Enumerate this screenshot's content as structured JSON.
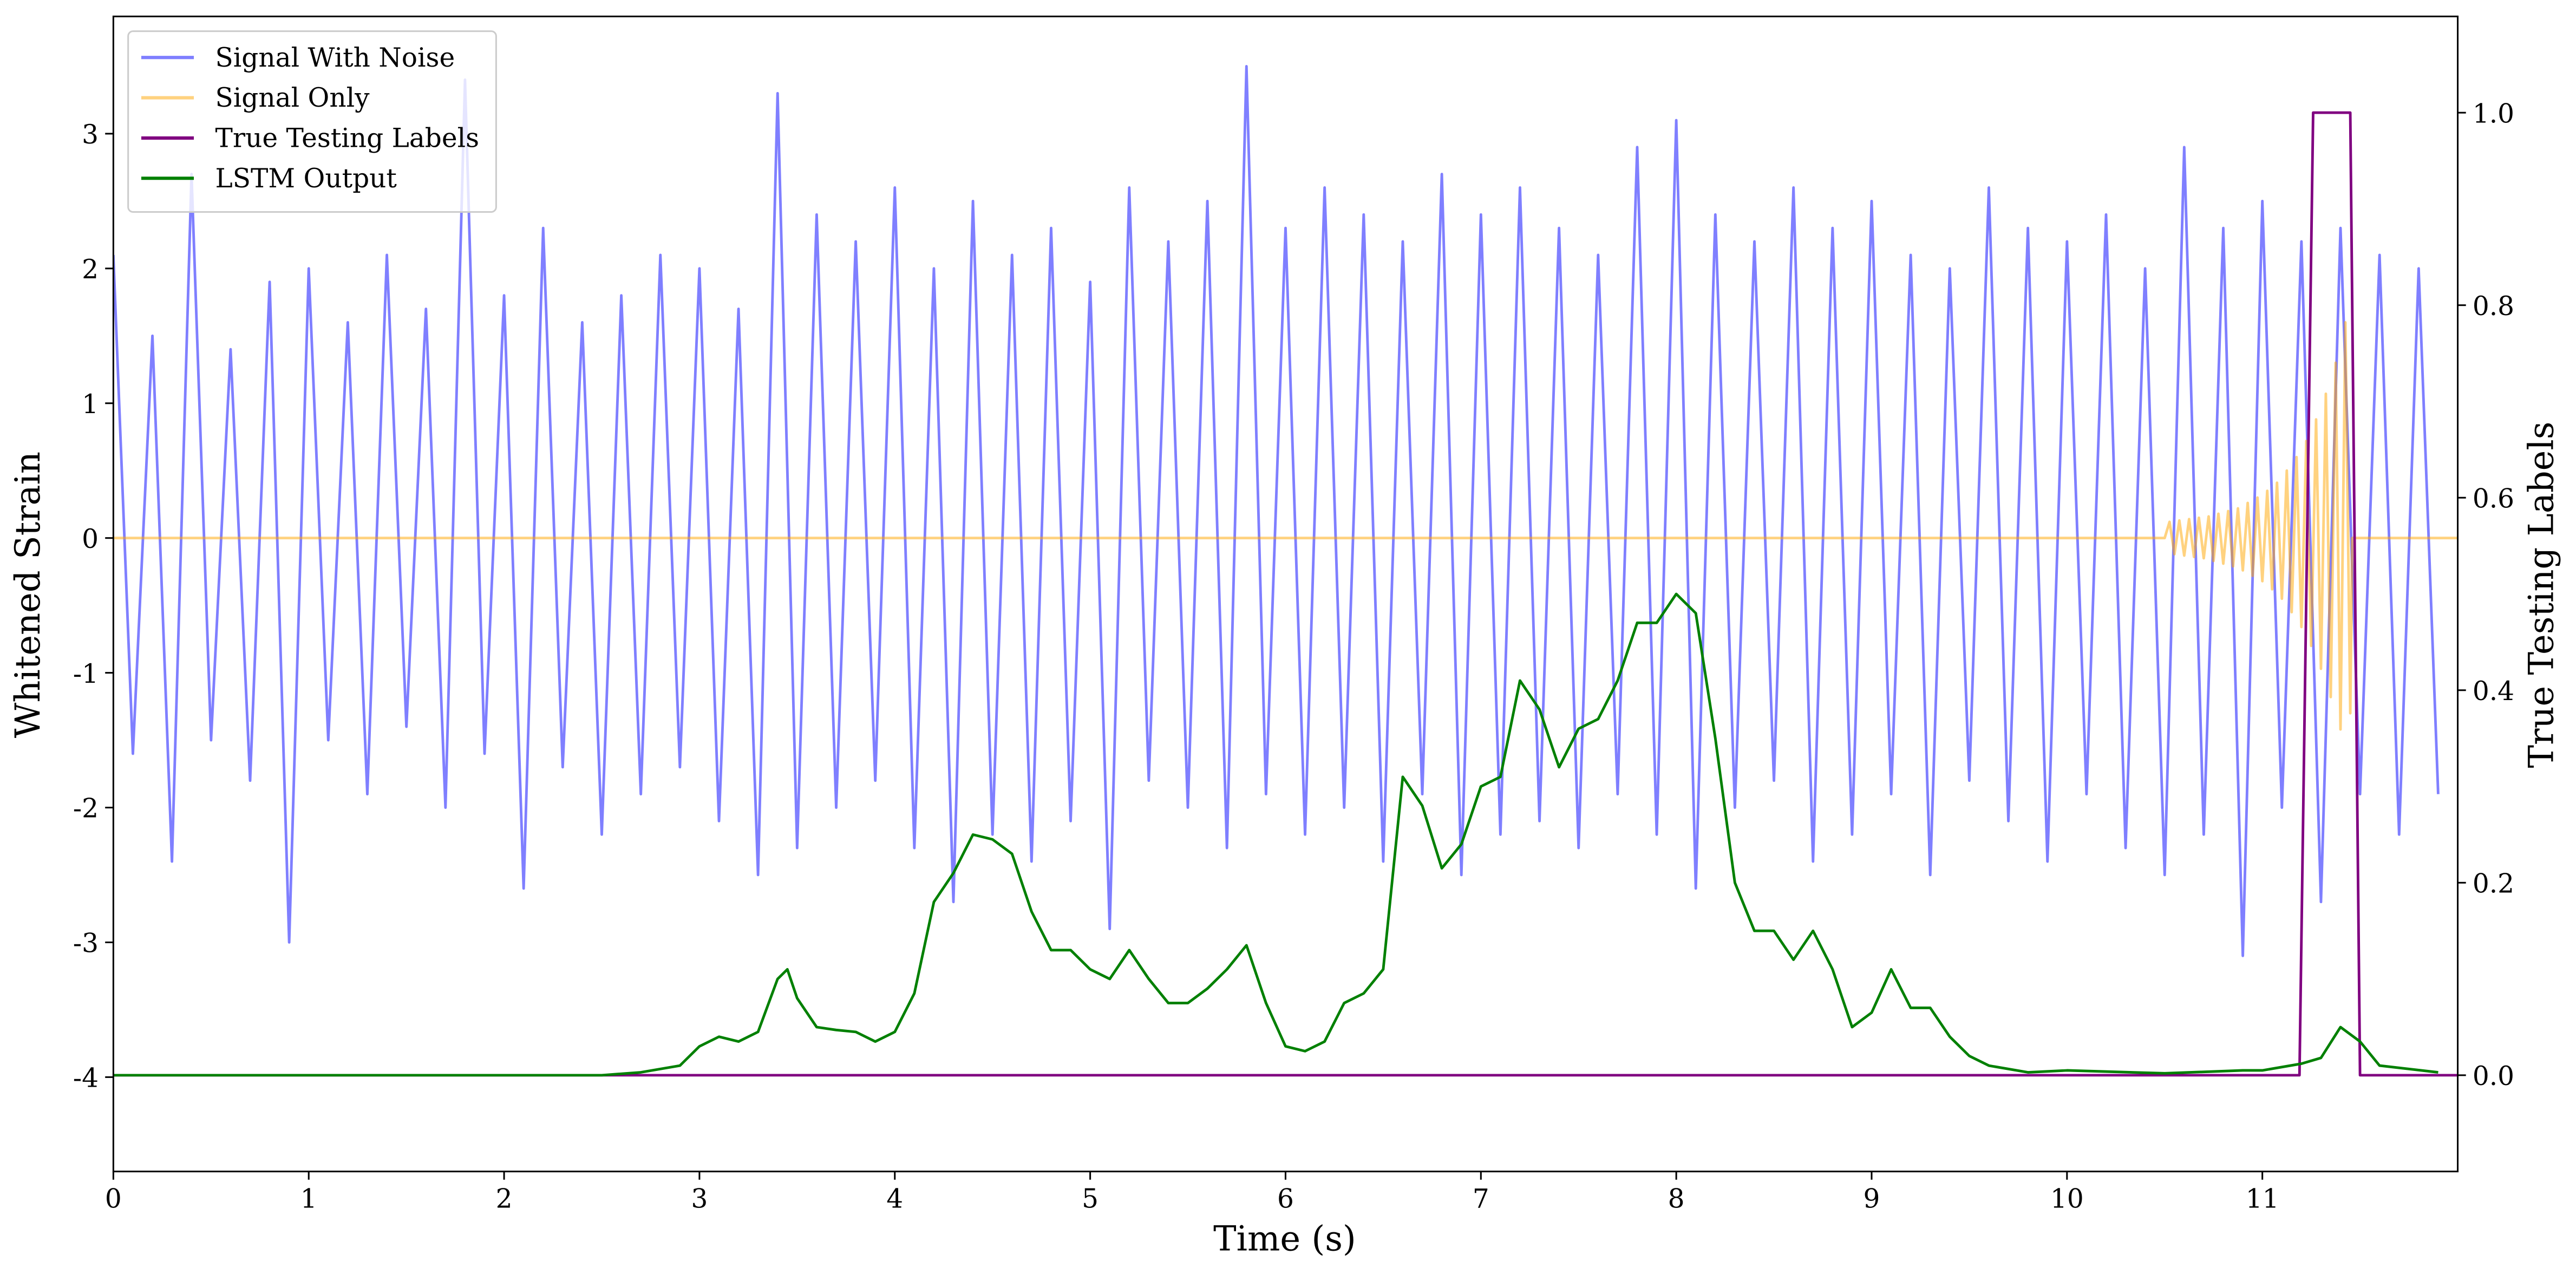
{
  "chart_data": {
    "type": "line",
    "xlabel": "Time (s)",
    "ylabel": "Whitened Strain",
    "y2label": "True Testing Labels",
    "xlim": [
      0,
      12
    ],
    "ylim": [
      -4.7,
      3.87
    ],
    "y2lim": [
      -0.1,
      1.1
    ],
    "xticks": [
      0,
      1,
      2,
      3,
      4,
      5,
      6,
      7,
      8,
      9,
      10,
      11
    ],
    "yticks": [
      -4,
      -3,
      -2,
      -1,
      0,
      1,
      2,
      3
    ],
    "y2ticks": [
      {
        "value": 0,
        "label": "0.0"
      },
      0.2,
      0.4,
      0.6,
      0.8,
      {
        "value": 1,
        "label": "1.0"
      }
    ],
    "legend": "upper left",
    "series": [
      {
        "name": "Signal With Noise",
        "color": "blue",
        "alpha": 0.5,
        "x": [
          0,
          0.1,
          0.2,
          0.3,
          0.4,
          0.5,
          0.6,
          0.7,
          0.8,
          0.9,
          1,
          1.1,
          1.2,
          1.3,
          1.4,
          1.5,
          1.6,
          1.7,
          1.8,
          1.9,
          2,
          2.1,
          2.2,
          2.3,
          2.4,
          2.5,
          2.6,
          2.7,
          2.8,
          2.9,
          3,
          3.1,
          3.2,
          3.3,
          3.4,
          3.5,
          3.6,
          3.7,
          3.8,
          3.9,
          4,
          4.1,
          4.2,
          4.3,
          4.4,
          4.5,
          4.6,
          4.7,
          4.8,
          4.9,
          5,
          5.1,
          5.2,
          5.3,
          5.4,
          5.5,
          5.6,
          5.7,
          5.8,
          5.9,
          6,
          6.1,
          6.2,
          6.3,
          6.4,
          6.5,
          6.6,
          6.7,
          6.8,
          6.9,
          7,
          7.1,
          7.2,
          7.3,
          7.4,
          7.5,
          7.6,
          7.7,
          7.8,
          7.9,
          8,
          8.1,
          8.2,
          8.3,
          8.4,
          8.5,
          8.6,
          8.7,
          8.8,
          8.9,
          9,
          9.1,
          9.2,
          9.3,
          9.4,
          9.5,
          9.6,
          9.7,
          9.8,
          9.9,
          10,
          10.1,
          10.2,
          10.3,
          10.4,
          10.5,
          10.6,
          10.7,
          10.8,
          10.9,
          11,
          11.1,
          11.2,
          11.3,
          11.4,
          11.5,
          11.6,
          11.7,
          11.8,
          11.9
        ],
        "values": [
          2.1,
          -1.6,
          1.5,
          -2.4,
          2.7,
          -1.5,
          1.4,
          -1.8,
          1.9,
          -3.0,
          2.0,
          -1.5,
          1.6,
          -1.9,
          2.1,
          -1.4,
          1.7,
          -2.0,
          3.4,
          -1.6,
          1.8,
          -2.6,
          2.3,
          -1.7,
          1.6,
          -2.2,
          1.8,
          -1.9,
          2.1,
          -1.7,
          2.0,
          -2.1,
          1.7,
          -2.5,
          3.3,
          -2.3,
          2.4,
          -2.0,
          2.2,
          -1.8,
          2.6,
          -2.3,
          2.0,
          -2.7,
          2.5,
          -2.2,
          2.1,
          -2.4,
          2.3,
          -2.1,
          1.9,
          -2.9,
          2.6,
          -1.8,
          2.2,
          -2.0,
          2.5,
          -2.3,
          3.5,
          -1.9,
          2.3,
          -2.2,
          2.6,
          -2.0,
          2.4,
          -2.4,
          2.2,
          -1.9,
          2.7,
          -2.5,
          2.4,
          -2.2,
          2.6,
          -2.1,
          2.3,
          -2.3,
          2.1,
          -1.9,
          2.9,
          -2.2,
          3.1,
          -2.6,
          2.4,
          -2.0,
          2.2,
          -1.8,
          2.6,
          -2.4,
          2.3,
          -2.2,
          2.5,
          -1.9,
          2.1,
          -2.5,
          2.0,
          -1.8,
          2.6,
          -2.1,
          2.3,
          -2.4,
          2.2,
          -1.9,
          2.4,
          -2.3,
          2.0,
          -2.5,
          2.9,
          -2.2,
          2.3,
          -3.1,
          2.5,
          -2.0,
          2.2,
          -2.7,
          2.3,
          -1.9,
          2.1,
          -2.2,
          2.0,
          -1.9
        ]
      },
      {
        "name": "Signal Only",
        "color": "orange",
        "alpha": 0.5,
        "x": [
          0,
          10.5,
          10.525,
          10.55,
          10.575,
          10.6,
          10.625,
          10.65,
          10.675,
          10.7,
          10.725,
          10.75,
          10.775,
          10.8,
          10.825,
          10.85,
          10.875,
          10.9,
          10.925,
          10.95,
          10.975,
          11,
          11.025,
          11.05,
          11.075,
          11.1,
          11.125,
          11.15,
          11.175,
          11.2,
          11.225,
          11.25,
          11.275,
          11.3,
          11.325,
          11.35,
          11.375,
          11.4,
          11.425,
          11.45,
          11.46,
          12
        ],
        "values": [
          0,
          0,
          0.12,
          -0.12,
          0.13,
          -0.13,
          0.14,
          -0.14,
          0.15,
          -0.15,
          0.16,
          -0.17,
          0.18,
          -0.19,
          0.2,
          -0.21,
          0.22,
          -0.24,
          0.26,
          -0.28,
          0.3,
          -0.32,
          0.35,
          -0.38,
          0.41,
          -0.45,
          0.5,
          -0.55,
          0.6,
          -0.66,
          0.72,
          -0.8,
          0.88,
          -0.97,
          1.07,
          -1.18,
          1.3,
          -1.42,
          1.6,
          -1.3,
          0,
          0
        ]
      },
      {
        "name": "True Testing Labels",
        "color": "purple",
        "alpha": 1,
        "axis": "y2",
        "x": [
          0,
          11.19,
          11.26,
          11.45,
          11.5,
          12
        ],
        "values": [
          0,
          0,
          1,
          1,
          0,
          0
        ]
      },
      {
        "name": "LSTM Output",
        "color": "green",
        "alpha": 1,
        "axis": "y2",
        "x": [
          0,
          2.5,
          2.7,
          2.9,
          3,
          3.1,
          3.2,
          3.3,
          3.4,
          3.45,
          3.5,
          3.6,
          3.7,
          3.8,
          3.9,
          4,
          4.1,
          4.2,
          4.3,
          4.4,
          4.5,
          4.6,
          4.7,
          4.8,
          4.9,
          5,
          5.1,
          5.2,
          5.3,
          5.4,
          5.5,
          5.6,
          5.7,
          5.8,
          5.9,
          6,
          6.1,
          6.2,
          6.3,
          6.4,
          6.5,
          6.6,
          6.7,
          6.8,
          6.9,
          7,
          7.1,
          7.2,
          7.3,
          7.4,
          7.5,
          7.6,
          7.7,
          7.8,
          7.9,
          8,
          8.1,
          8.2,
          8.3,
          8.4,
          8.5,
          8.6,
          8.7,
          8.8,
          8.9,
          9,
          9.1,
          9.2,
          9.3,
          9.4,
          9.5,
          9.6,
          9.8,
          10,
          10.5,
          10.9,
          11,
          11.2,
          11.3,
          11.4,
          11.5,
          11.6,
          11.9
        ],
        "values": [
          0,
          0,
          0.003,
          0.01,
          0.03,
          0.04,
          0.035,
          0.045,
          0.1,
          0.11,
          0.08,
          0.05,
          0.047,
          0.045,
          0.035,
          0.045,
          0.085,
          0.18,
          0.21,
          0.25,
          0.245,
          0.23,
          0.17,
          0.13,
          0.13,
          0.11,
          0.1,
          0.13,
          0.1,
          0.075,
          0.075,
          0.09,
          0.11,
          0.135,
          0.075,
          0.03,
          0.025,
          0.035,
          0.075,
          0.085,
          0.11,
          0.31,
          0.28,
          0.215,
          0.24,
          0.3,
          0.31,
          0.41,
          0.38,
          0.32,
          0.36,
          0.37,
          0.41,
          0.47,
          0.47,
          0.5,
          0.48,
          0.35,
          0.2,
          0.15,
          0.15,
          0.12,
          0.15,
          0.11,
          0.05,
          0.065,
          0.11,
          0.07,
          0.07,
          0.04,
          0.02,
          0.01,
          0.003,
          0.005,
          0.002,
          0.005,
          0.005,
          0.012,
          0.018,
          0.05,
          0.035,
          0.01,
          0.003
        ]
      }
    ]
  }
}
